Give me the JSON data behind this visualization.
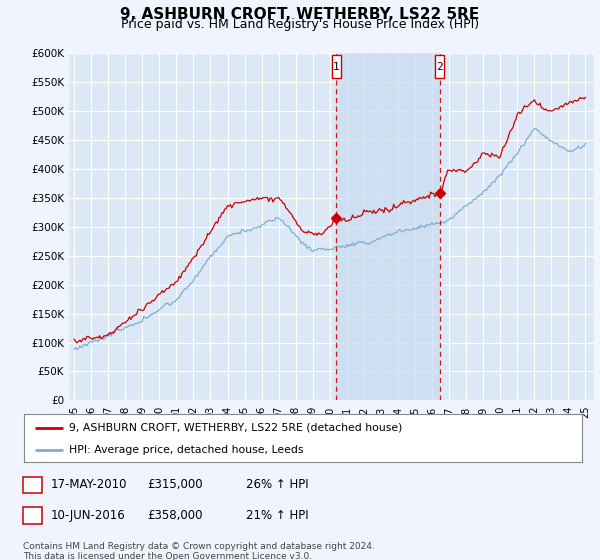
{
  "title": "9, ASHBURN CROFT, WETHERBY, LS22 5RE",
  "subtitle": "Price paid vs. HM Land Registry's House Price Index (HPI)",
  "title_fontsize": 11,
  "subtitle_fontsize": 9,
  "ylim": [
    0,
    600000
  ],
  "yticks": [
    0,
    50000,
    100000,
    150000,
    200000,
    250000,
    300000,
    350000,
    400000,
    450000,
    500000,
    550000,
    600000
  ],
  "ytick_labels": [
    "£0",
    "£50K",
    "£100K",
    "£150K",
    "£200K",
    "£250K",
    "£300K",
    "£350K",
    "£400K",
    "£450K",
    "£500K",
    "£550K",
    "£600K"
  ],
  "background_color": "#f0f4ff",
  "plot_bg_color": "#dce8f5",
  "shade_color": "#c8dcf0",
  "grid_color": "#ffffff",
  "red_line_color": "#cc0000",
  "blue_line_color": "#7ab0d4",
  "marker1_date": 2010.38,
  "marker1_value": 315000,
  "marker2_date": 2016.44,
  "marker2_value": 358000,
  "legend_line1": "9, ASHBURN CROFT, WETHERBY, LS22 5RE (detached house)",
  "legend_line2": "HPI: Average price, detached house, Leeds",
  "table_row1": [
    "1",
    "17-MAY-2010",
    "£315,000",
    "26% ↑ HPI"
  ],
  "table_row2": [
    "2",
    "10-JUN-2016",
    "£358,000",
    "21% ↑ HPI"
  ],
  "footer": "Contains HM Land Registry data © Crown copyright and database right 2024.\nThis data is licensed under the Open Government Licence v3.0.",
  "xmin": 1994.7,
  "xmax": 2025.5
}
